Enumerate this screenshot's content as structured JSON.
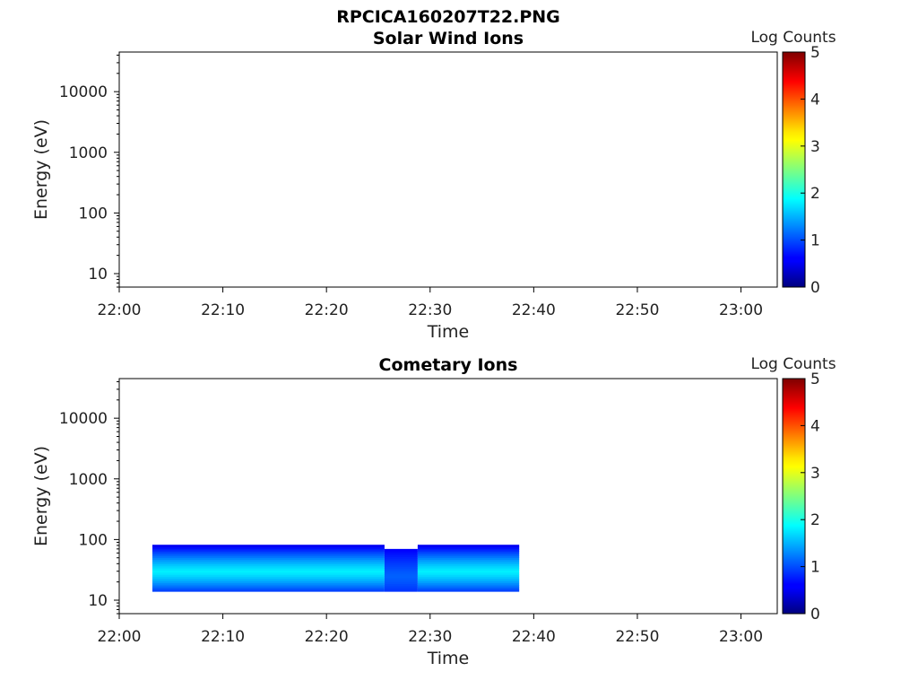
{
  "figure_title": "RPCICA160207T22.PNG",
  "chart_data": [
    {
      "type": "heatmap",
      "title": "Solar Wind Ions",
      "xlabel": "Time",
      "ylabel": "Energy (eV)",
      "y_scale": "log",
      "x_ticks": [
        "22:00",
        "22:10",
        "22:20",
        "22:30",
        "22:40",
        "22:50",
        "23:00"
      ],
      "x_range_minutes": [
        0,
        63.5
      ],
      "y_ticks": [
        10,
        100,
        1000,
        10000
      ],
      "y_ticks_labels": [
        "10",
        "100",
        "1000",
        "10000"
      ],
      "y_range": [
        6,
        45000
      ],
      "colorbar": {
        "label": "Log Counts",
        "range": [
          0,
          5
        ],
        "ticks": [
          "0",
          "1",
          "2",
          "3",
          "4",
          "5"
        ],
        "colormap": "jet"
      },
      "data_blocks": []
    },
    {
      "type": "heatmap",
      "title": "Cometary Ions",
      "xlabel": "Time",
      "ylabel": "Energy (eV)",
      "y_scale": "log",
      "x_ticks": [
        "22:00",
        "22:10",
        "22:20",
        "22:30",
        "22:40",
        "22:50",
        "23:00"
      ],
      "x_range_minutes": [
        0,
        63.5
      ],
      "y_ticks": [
        10,
        100,
        1000,
        10000
      ],
      "y_ticks_labels": [
        "10",
        "100",
        "1000",
        "10000"
      ],
      "y_range": [
        6,
        45000
      ],
      "colorbar": {
        "label": "Log Counts",
        "range": [
          0,
          5
        ],
        "ticks": [
          "0",
          "1",
          "2",
          "3",
          "4",
          "5"
        ],
        "colormap": "jet"
      },
      "data_blocks": [
        {
          "t_start": 3.2,
          "t_end": 25.6,
          "e_low": 14,
          "e_high": 82,
          "peak_energy": 30,
          "peak_log_counts": 1.8,
          "edge_log_counts": 0.5
        },
        {
          "t_start": 25.6,
          "t_end": 28.8,
          "e_low": 14,
          "e_high": 70,
          "peak_energy": 25,
          "peak_log_counts": 1.1,
          "edge_log_counts": 0.6
        },
        {
          "t_start": 28.8,
          "t_end": 38.6,
          "e_low": 14,
          "e_high": 82,
          "peak_energy": 30,
          "peak_log_counts": 1.8,
          "edge_log_counts": 0.5
        }
      ]
    }
  ]
}
